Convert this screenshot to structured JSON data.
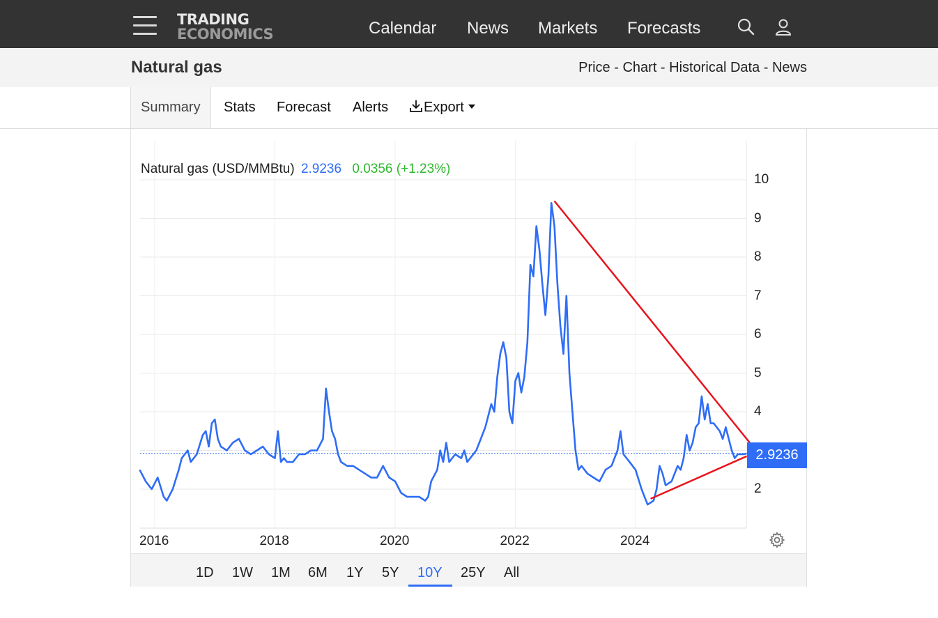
{
  "nav": {
    "logo_line1": "TRADING",
    "logo_line2": "ECONOMICS",
    "items": [
      "Calendar",
      "News",
      "Markets",
      "Forecasts"
    ]
  },
  "subheader": {
    "title": "Natural gas",
    "links": [
      "Price",
      "Chart",
      "Historical Data",
      "News"
    ],
    "separator": " - "
  },
  "tabs": [
    "Summary",
    "Stats",
    "Forecast",
    "Alerts",
    "Export"
  ],
  "legend": {
    "name": "Natural gas (USD/MMBtu)",
    "price": "2.9236",
    "change": "0.0356 (+1.23%)"
  },
  "price_label": "2.9236",
  "ranges": [
    "1D",
    "1W",
    "1M",
    "6M",
    "1Y",
    "5Y",
    "10Y",
    "25Y",
    "All"
  ],
  "selected_range": "10Y",
  "colors": {
    "line": "#2f6df6",
    "trendline": "#e8141c",
    "up": "#2eb82e",
    "topbar": "#333333"
  },
  "chart_data": {
    "type": "line",
    "title": "Natural gas (USD/MMBtu)",
    "ylim": [
      1,
      11
    ],
    "y_ticks": [
      2,
      4,
      5,
      6,
      7,
      8,
      9,
      10
    ],
    "x_ticks": [
      "2016",
      "2018",
      "2020",
      "2022",
      "2024"
    ],
    "xlim": [
      2015.75,
      2025.9
    ],
    "last_value": 2.9236,
    "series": [
      {
        "name": "Natural gas",
        "x": [
          2015.75,
          2015.85,
          2015.95,
          2016.05,
          2016.15,
          2016.2,
          2016.3,
          2016.4,
          2016.45,
          2016.55,
          2016.6,
          2016.7,
          2016.8,
          2016.85,
          2016.9,
          2016.95,
          2017.0,
          2017.05,
          2017.1,
          2017.2,
          2017.3,
          2017.4,
          2017.5,
          2017.6,
          2017.7,
          2017.8,
          2017.9,
          2018.0,
          2018.05,
          2018.1,
          2018.15,
          2018.2,
          2018.3,
          2018.4,
          2018.5,
          2018.6,
          2018.7,
          2018.8,
          2018.85,
          2018.9,
          2018.95,
          2019.0,
          2019.05,
          2019.1,
          2019.2,
          2019.3,
          2019.4,
          2019.5,
          2019.6,
          2019.7,
          2019.8,
          2019.9,
          2020.0,
          2020.1,
          2020.2,
          2020.3,
          2020.4,
          2020.5,
          2020.55,
          2020.6,
          2020.7,
          2020.75,
          2020.8,
          2020.85,
          2020.9,
          2021.0,
          2021.1,
          2021.15,
          2021.2,
          2021.3,
          2021.35,
          2021.4,
          2021.5,
          2021.6,
          2021.65,
          2021.7,
          2021.75,
          2021.8,
          2021.85,
          2021.9,
          2021.95,
          2022.0,
          2022.05,
          2022.1,
          2022.15,
          2022.2,
          2022.25,
          2022.3,
          2022.35,
          2022.4,
          2022.45,
          2022.5,
          2022.55,
          2022.6,
          2022.65,
          2022.7,
          2022.75,
          2022.8,
          2022.85,
          2022.9,
          2022.95,
          2023.0,
          2023.05,
          2023.1,
          2023.2,
          2023.3,
          2023.4,
          2023.5,
          2023.6,
          2023.7,
          2023.75,
          2023.8,
          2023.9,
          2024.0,
          2024.1,
          2024.15,
          2024.2,
          2024.3,
          2024.35,
          2024.4,
          2024.45,
          2024.5,
          2024.6,
          2024.7,
          2024.75,
          2024.8,
          2024.85,
          2024.9,
          2024.95,
          2025.0,
          2025.05,
          2025.1,
          2025.15,
          2025.2,
          2025.25,
          2025.3,
          2025.4,
          2025.45,
          2025.5,
          2025.6,
          2025.65,
          2025.7,
          2025.8,
          2025.85
        ],
        "y": [
          2.5,
          2.2,
          2.0,
          2.3,
          1.8,
          1.7,
          2.0,
          2.5,
          2.8,
          3.0,
          2.7,
          2.9,
          3.4,
          3.5,
          3.1,
          3.7,
          3.8,
          3.3,
          3.1,
          3.0,
          3.2,
          3.3,
          3.0,
          2.9,
          3.0,
          3.1,
          2.9,
          2.8,
          3.5,
          2.7,
          2.8,
          2.7,
          2.7,
          2.9,
          2.9,
          3.0,
          3.0,
          3.3,
          4.6,
          4.0,
          3.5,
          3.3,
          2.9,
          2.7,
          2.6,
          2.6,
          2.5,
          2.4,
          2.3,
          2.3,
          2.6,
          2.3,
          2.2,
          1.9,
          1.8,
          1.8,
          1.8,
          1.7,
          1.8,
          2.2,
          2.5,
          3.0,
          2.7,
          3.2,
          2.7,
          2.9,
          2.8,
          3.0,
          2.7,
          2.9,
          3.0,
          3.2,
          3.6,
          4.2,
          4.0,
          4.9,
          5.5,
          5.8,
          5.4,
          4.0,
          3.7,
          4.8,
          5.0,
          4.5,
          4.9,
          5.8,
          7.8,
          7.5,
          8.8,
          8.2,
          7.3,
          6.5,
          7.5,
          9.4,
          8.8,
          7.3,
          6.2,
          5.5,
          7.0,
          5.0,
          4.0,
          3.0,
          2.5,
          2.6,
          2.4,
          2.3,
          2.2,
          2.5,
          2.6,
          3.0,
          3.5,
          2.9,
          2.7,
          2.5,
          2.0,
          1.8,
          1.6,
          1.7,
          2.0,
          2.6,
          2.4,
          2.1,
          2.2,
          2.6,
          2.5,
          2.8,
          3.4,
          3.0,
          3.2,
          3.6,
          3.7,
          4.4,
          3.8,
          4.2,
          3.7,
          3.7,
          3.5,
          3.3,
          3.6,
          3.0,
          2.8,
          2.9,
          2.9,
          2.92
        ]
      }
    ],
    "trendlines": [
      {
        "x": [
          2022.65,
          2025.9
        ],
        "y": [
          9.45,
          3.2
        ]
      },
      {
        "x": [
          2024.25,
          2025.85
        ],
        "y": [
          1.75,
          2.85
        ]
      }
    ]
  }
}
